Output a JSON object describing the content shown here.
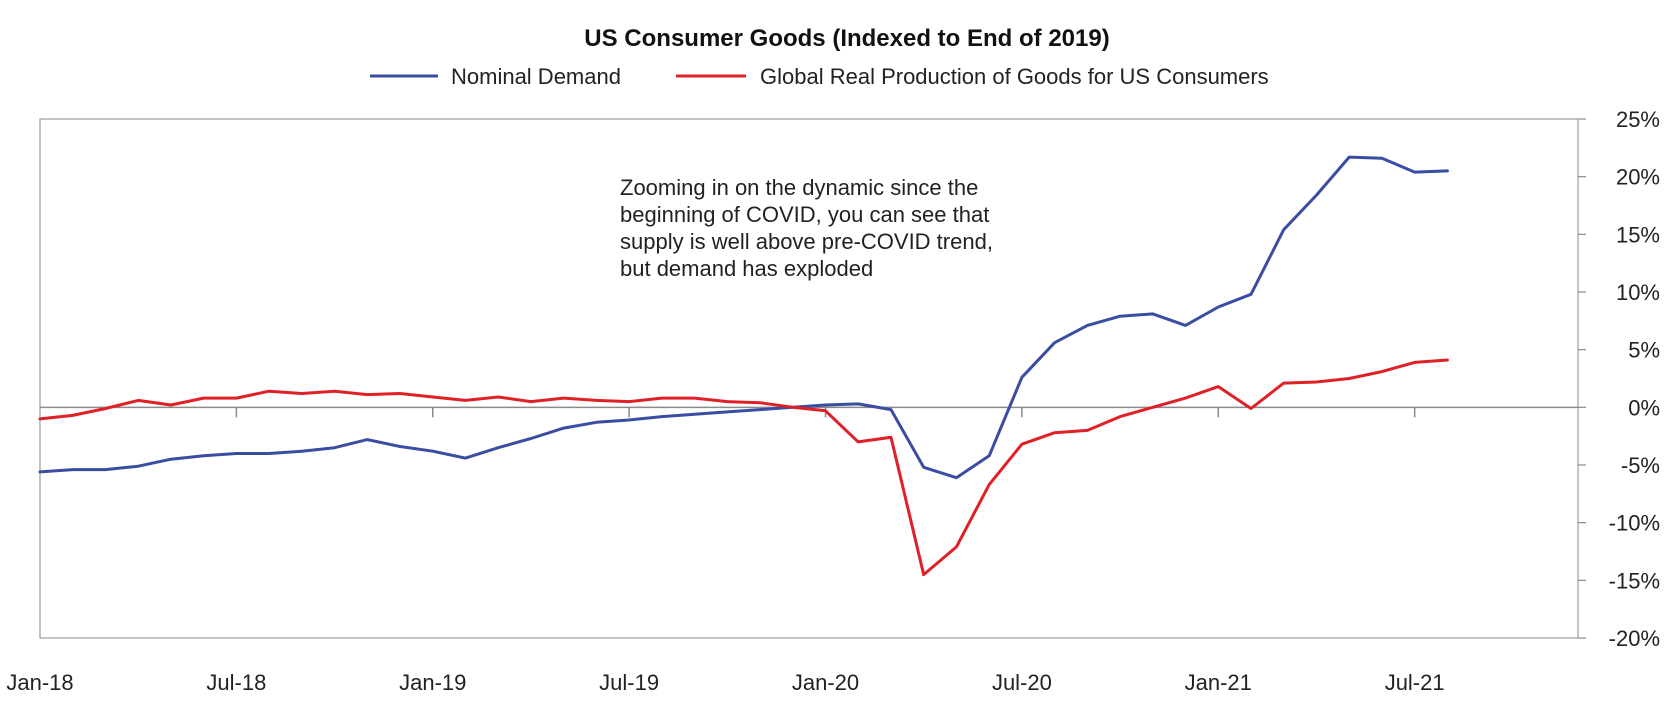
{
  "chart_data": {
    "type": "line",
    "title": "US Consumer Goods (Indexed to End of 2019)",
    "xlabel": "",
    "ylabel": "",
    "x_tick_labels": [
      "Jan-18",
      "Jul-18",
      "Jan-19",
      "Jul-19",
      "Jan-20",
      "Jul-20",
      "Jan-21",
      "Jul-21"
    ],
    "x_start": "Jan-18",
    "x_end": "Dec-21",
    "ylim": [
      -20,
      25
    ],
    "y_ticks": [
      25,
      20,
      15,
      10,
      5,
      0,
      -5,
      -10,
      -15,
      -20
    ],
    "y_tick_labels": [
      "25%",
      "20%",
      "15%",
      "10%",
      "5%",
      "0%",
      "-5%",
      "-10%",
      "-15%",
      "-20%"
    ],
    "y_axis_side": "right",
    "grid": false,
    "legend_position": "top-center",
    "annotation": [
      "Zooming in on the dynamic since the",
      "beginning of COVID, you can see that",
      "supply is well above pre-COVID trend,",
      "but demand has exploded"
    ],
    "series": [
      {
        "name": "Nominal Demand",
        "color": "#3a4da3",
        "x_start": "Jan-18",
        "values": [
          -5.6,
          -5.4,
          -5.4,
          -5.1,
          -4.5,
          -4.2,
          -4.0,
          -4.0,
          -3.8,
          -3.5,
          -2.8,
          -3.4,
          -3.8,
          -4.4,
          -3.5,
          -2.7,
          -1.8,
          -1.3,
          -1.1,
          -0.8,
          -0.6,
          -0.4,
          -0.2,
          0.0,
          0.2,
          0.3,
          -0.2,
          -5.2,
          -6.1,
          -4.2,
          2.6,
          5.6,
          7.1,
          7.9,
          8.1,
          7.1,
          8.7,
          9.8,
          15.4,
          18.4,
          21.7,
          21.6,
          20.4,
          20.5
        ]
      },
      {
        "name": "Global Real Production of Goods for US Consumers",
        "color": "#e02027",
        "x_start": "Jan-18",
        "values": [
          -1.0,
          -0.7,
          -0.1,
          0.6,
          0.2,
          0.8,
          0.8,
          1.4,
          1.2,
          1.4,
          1.1,
          1.2,
          0.9,
          0.6,
          0.9,
          0.5,
          0.8,
          0.6,
          0.5,
          0.8,
          0.8,
          0.5,
          0.4,
          0.0,
          -0.3,
          -3.0,
          -2.6,
          -14.5,
          -12.1,
          -6.7,
          -3.2,
          -2.2,
          -2.0,
          -0.8,
          0.0,
          0.8,
          1.8,
          -0.1,
          2.1,
          2.2,
          2.5,
          3.1,
          3.9,
          4.1
        ]
      }
    ]
  }
}
